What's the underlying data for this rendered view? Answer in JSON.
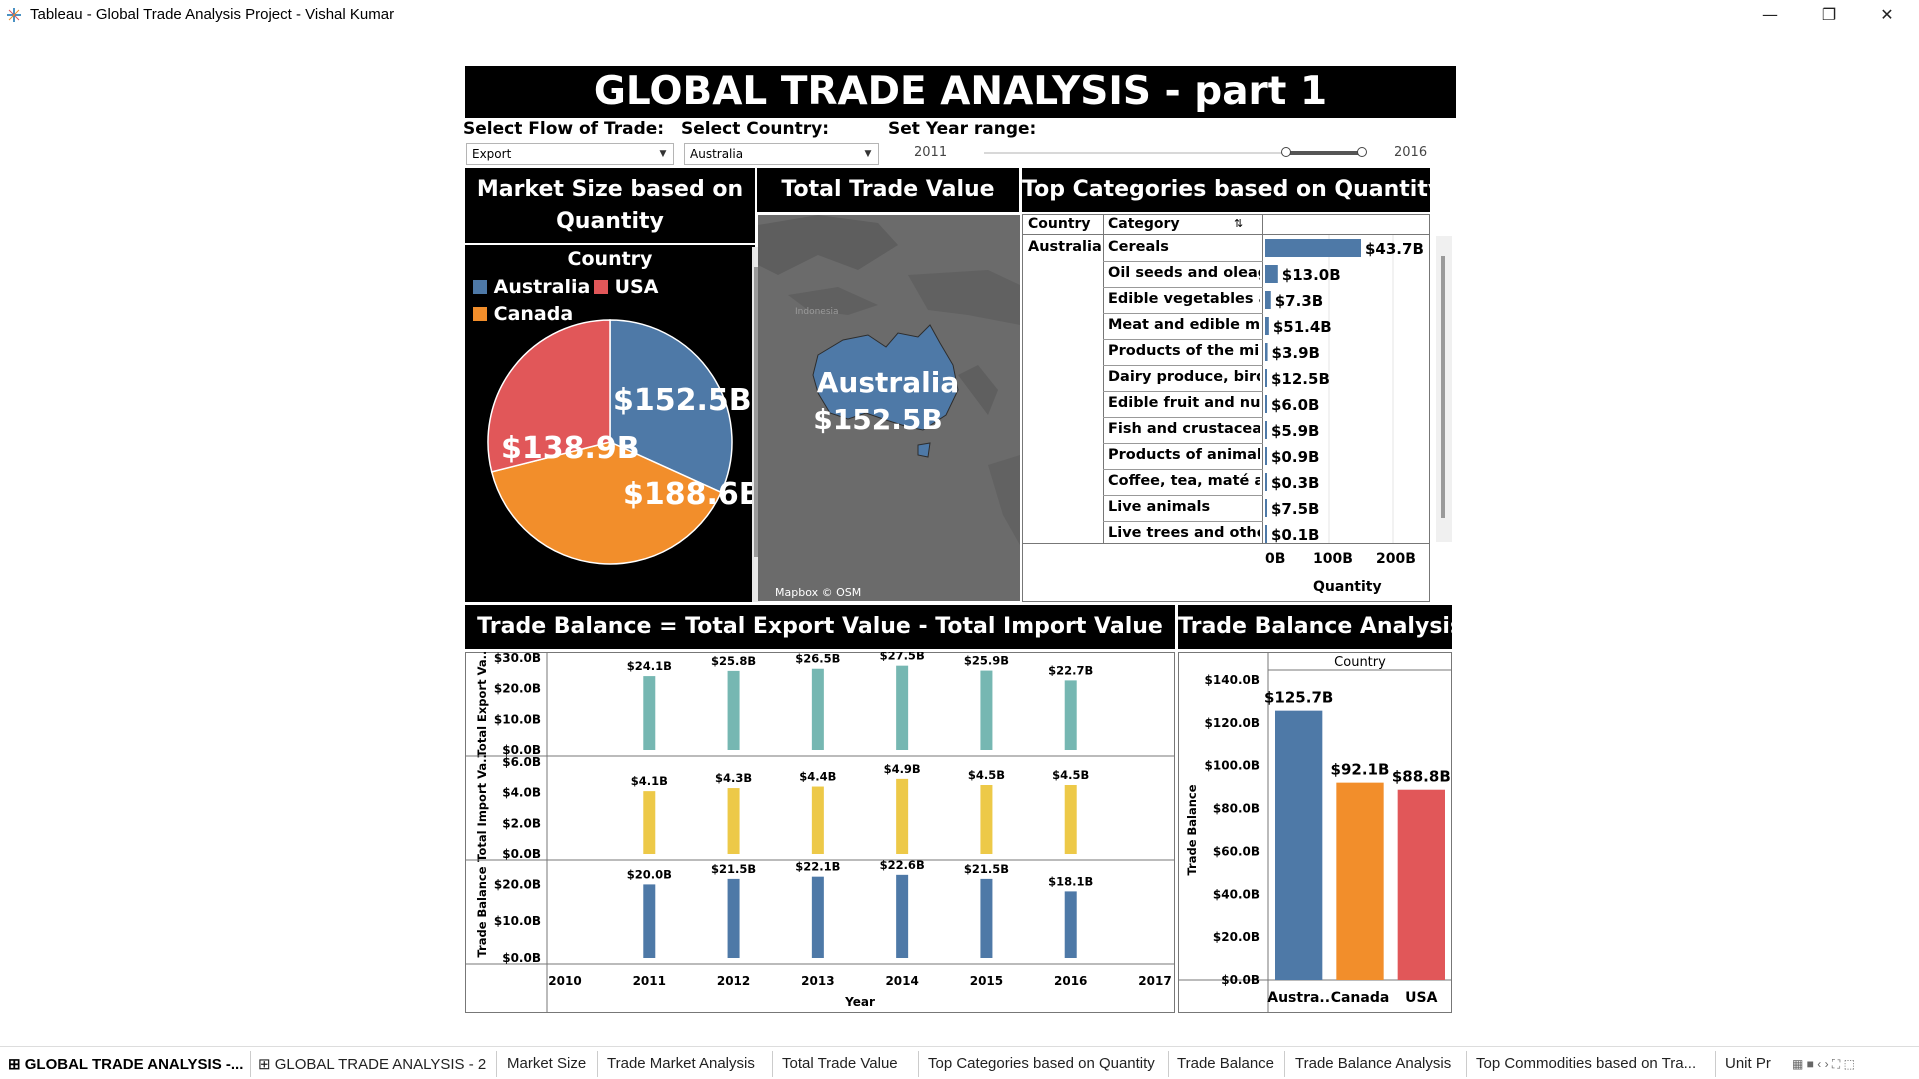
{
  "window": {
    "title": "Tableau - Global Trade Analysis Project - Vishal Kumar",
    "minimize": "—",
    "restore": "❐",
    "close": "✕"
  },
  "dashboard": {
    "title": "GLOBAL TRADE ANALYSIS - part 1",
    "filters": {
      "flow_label": "Select Flow of Trade:",
      "flow_value": "Export",
      "country_label": "Select Country:",
      "country_value": "Australia",
      "year_label": "Set Year range:",
      "year_min": "2011",
      "year_max": "2016"
    }
  },
  "market_size": {
    "header_line1": "Market Size based on",
    "header_line2": "Quantity",
    "legend_title": "Country",
    "legend": [
      {
        "label": "Australia",
        "color": "#4e79a7"
      },
      {
        "label": "USA",
        "color": "#e15759"
      },
      {
        "label": "Canada",
        "color": "#f28e2b"
      }
    ]
  },
  "total_trade": {
    "header": "Total Trade Value",
    "map_country": "Australia",
    "map_value": "$152.5B",
    "map_place": "Indonesia",
    "attribution": "Mapbox © OSM"
  },
  "top_categories": {
    "header": "Top Categories based on Quantity",
    "col_country": "Country",
    "col_category": "Category",
    "country": "Australia",
    "axis_ticks": [
      "0B",
      "100B",
      "200B"
    ],
    "axis_title": "Quantity"
  },
  "trade_balance_chart": {
    "header": "Trade Balance = Total Export Value - Total Import Value",
    "row_labels": [
      "Total Export Va..",
      "Total Import Va..",
      "Trade Balance"
    ],
    "x_ticks": [
      "2010",
      "2011",
      "2012",
      "2013",
      "2014",
      "2015",
      "2016",
      "2017"
    ],
    "x_title": "Year",
    "y_ticks_export": [
      "$30.0B",
      "$20.0B",
      "$10.0B",
      "$0.0B"
    ],
    "y_ticks_import": [
      "$6.0B",
      "$4.0B",
      "$2.0B",
      "$0.0B"
    ],
    "y_ticks_balance": [
      "$20.0B",
      "$10.0B",
      "$0.0B"
    ]
  },
  "balance_analysis": {
    "header": "Trade Balance Analysis",
    "col_header": "Country",
    "y_title": "Trade Balance",
    "y_ticks": [
      "$140.0B",
      "$120.0B",
      "$100.0B",
      "$80.0B",
      "$60.0B",
      "$40.0B",
      "$20.0B",
      "$0.0B"
    ]
  },
  "tabs": [
    "GLOBAL TRADE ANALYSIS -...",
    "GLOBAL TRADE ANALYSIS - 2",
    "Market Size",
    "Trade Market Analysis",
    "Total Trade Value",
    "Top Categories based on Quantity",
    "Trade Balance",
    "Trade Balance Analysis",
    "Top Commodities based on Tra...",
    "Unit Pr"
  ],
  "chart_data": [
    {
      "type": "pie",
      "title": "Market Size based on Quantity",
      "categories": [
        "Australia",
        "Canada",
        "USA"
      ],
      "values": [
        152.5,
        188.6,
        138.9
      ],
      "labels": [
        "$152.5B",
        "$188.6B",
        "$138.9B"
      ],
      "colors": [
        "#4e79a7",
        "#f28e2b",
        "#e15759"
      ],
      "legend": "top"
    },
    {
      "type": "bar",
      "title": "Top Categories based on Quantity",
      "orientation": "horizontal",
      "categories": [
        "Cereals",
        "Oil seeds and oleagi..",
        "Edible vegetables an..",
        "Meat and edible me..",
        "Products of the milli..",
        "Dairy produce, birds..",
        "Edible fruit and nuts..",
        "Fish and crustacean..",
        "Products of animal o..",
        "Coffee, tea, maté an..",
        "Live animals",
        "Live trees and other .."
      ],
      "values": [
        43.7,
        13.0,
        7.3,
        51.4,
        3.9,
        12.5,
        6.0,
        5.9,
        0.9,
        0.3,
        7.5,
        0.1
      ],
      "labels": [
        "$43.7B",
        "$13.0B",
        "$7.3B",
        "$51.4B",
        "$3.9B",
        "$12.5B",
        "$6.0B",
        "$5.9B",
        "$0.9B",
        "$0.3B",
        "$7.5B",
        "$0.1B"
      ],
      "bar_quantity": [
        150,
        20,
        9,
        6,
        4,
        3,
        2,
        2,
        1,
        1,
        1,
        1
      ],
      "xlabel": "Quantity",
      "xlim": [
        0,
        250
      ],
      "color": "#4e79a7"
    },
    {
      "type": "bar",
      "title": "Trade Balance = Total Export Value - Total Import Value",
      "x": [
        2011,
        2012,
        2013,
        2014,
        2015,
        2016
      ],
      "xlim": [
        2010,
        2017
      ],
      "xlabel": "Year",
      "series": [
        {
          "name": "Total Export Va..",
          "values": [
            24.1,
            25.8,
            26.5,
            27.5,
            25.9,
            22.7
          ],
          "labels": [
            "$24.1B",
            "$25.8B",
            "$26.5B",
            "$27.5B",
            "$25.9B",
            "$22.7B"
          ],
          "ylim": [
            0,
            30
          ],
          "color": "#76b7b2"
        },
        {
          "name": "Total Import Va..",
          "values": [
            4.1,
            4.3,
            4.4,
            4.9,
            4.5,
            4.5
          ],
          "labels": [
            "$4.1B",
            "$4.3B",
            "$4.4B",
            "$4.9B",
            "$4.5B",
            "$4.5B"
          ],
          "ylim": [
            0,
            6
          ],
          "color": "#edc948"
        },
        {
          "name": "Trade Balance",
          "values": [
            20.0,
            21.5,
            22.1,
            22.6,
            21.5,
            18.1
          ],
          "labels": [
            "$20.0B",
            "$21.5B",
            "$22.1B",
            "$22.6B",
            "$21.5B",
            "$18.1B"
          ],
          "ylim": [
            0,
            25
          ],
          "color": "#4e79a7"
        }
      ]
    },
    {
      "type": "bar",
      "title": "Trade Balance Analysis",
      "categories": [
        "Austra..",
        "Canada",
        "USA"
      ],
      "values": [
        125.7,
        92.1,
        88.8
      ],
      "labels": [
        "$125.7B",
        "$92.1B",
        "$88.8B"
      ],
      "colors": [
        "#4e79a7",
        "#f28e2b",
        "#e15759"
      ],
      "ylabel": "Trade Balance",
      "ylim": [
        0,
        140
      ]
    }
  ]
}
